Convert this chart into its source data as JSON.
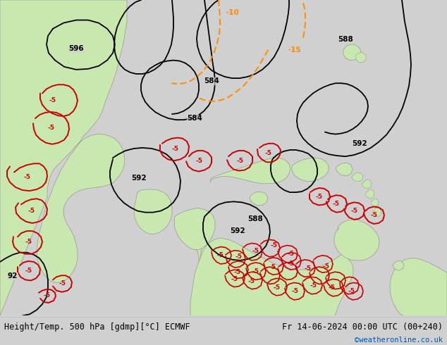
{
  "title_left": "Height/Temp. 500 hPa [gdmp][°C] ECMWF",
  "title_right": "Fr 14-06-2024 00:00 UTC (00+240)",
  "credit": "©weatheronline.co.uk",
  "ocean_color": "#d0d0d0",
  "land_color": "#c8e8b0",
  "land_edge_color": "#888888",
  "bg_color": "#d0d0d0",
  "label_bar_color": "#e8e8e8",
  "contour_color": "#000000",
  "temp_orange_color": "#ff8c00",
  "temp_red_color": "#cc0000",
  "fig_width": 6.34,
  "fig_height": 4.9,
  "dpi": 100,
  "title_font_size": 8.5,
  "credit_font_size": 7.5,
  "credit_color": "#0055bb"
}
